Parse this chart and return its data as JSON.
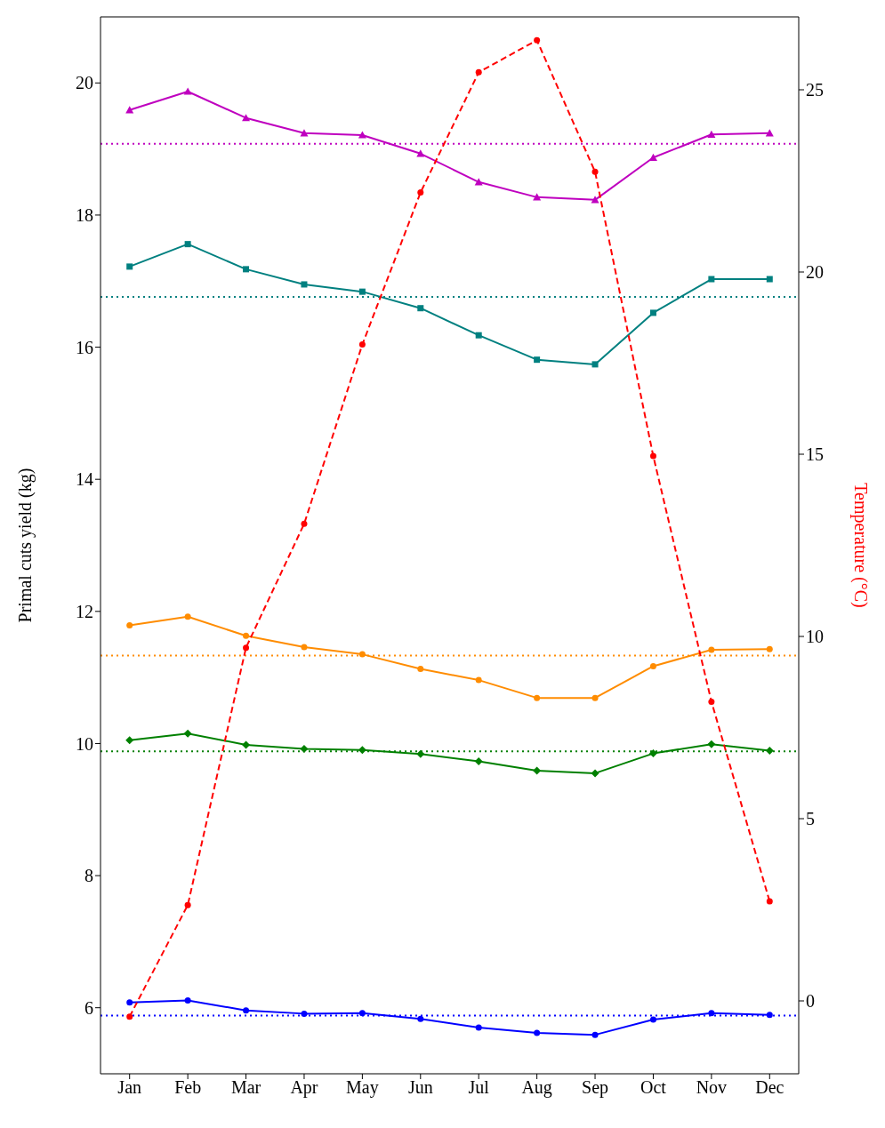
{
  "chart_data": {
    "type": "line",
    "ylabel": "Primal cuts yield (kg)",
    "y2label": "Temperature (°C)",
    "categories": [
      "Jan",
      "Feb",
      "Mar",
      "Apr",
      "May",
      "Jun",
      "Jul",
      "Aug",
      "Sep",
      "Oct",
      "Nov",
      "Dec"
    ],
    "ylim": [
      5,
      21
    ],
    "yticks": [
      6,
      8,
      10,
      12,
      14,
      16,
      18,
      20
    ],
    "y2lim": [
      -2,
      27
    ],
    "y2ticks": [
      0,
      5,
      10,
      15,
      20,
      25
    ],
    "grid": false,
    "legend": false,
    "series": [
      {
        "color": "#bf00bf",
        "marker": "triangle",
        "line_style": "solid",
        "values": [
          19.59,
          19.87,
          19.47,
          19.24,
          19.21,
          18.93,
          18.5,
          18.27,
          18.23,
          18.87,
          19.22,
          19.24
        ]
      },
      {
        "color": "#008080",
        "marker": "square",
        "line_style": "solid",
        "values": [
          17.22,
          17.56,
          17.18,
          16.95,
          16.84,
          16.59,
          16.18,
          15.81,
          15.74,
          16.52,
          17.03,
          17.03
        ]
      },
      {
        "color": "#ff8c00",
        "marker": "circle",
        "line_style": "solid",
        "values": [
          11.79,
          11.92,
          11.63,
          11.46,
          11.35,
          11.13,
          10.96,
          10.69,
          10.69,
          11.17,
          11.42,
          11.43
        ]
      },
      {
        "color": "#008000",
        "marker": "diamond",
        "line_style": "solid",
        "values": [
          10.05,
          10.15,
          9.98,
          9.92,
          9.9,
          9.84,
          9.73,
          9.59,
          9.55,
          9.85,
          9.99,
          9.89
        ]
      },
      {
        "color": "#0000ff",
        "marker": "circle",
        "line_style": "solid",
        "values": [
          6.08,
          6.11,
          5.96,
          5.91,
          5.92,
          5.83,
          5.7,
          5.62,
          5.59,
          5.82,
          5.92,
          5.89
        ]
      },
      {
        "color": "#ff0000",
        "marker": "circle",
        "line_style": "dashed",
        "axis": "y2",
        "values": [
          -0.43,
          2.63,
          9.69,
          13.09,
          18.01,
          22.18,
          25.48,
          26.36,
          22.75,
          14.95,
          8.21,
          2.73
        ]
      }
    ],
    "ref_lines": [
      {
        "axis": "y",
        "value": 19.08,
        "color": "#bf00bf",
        "line_style": "dotted"
      },
      {
        "axis": "y",
        "value": 16.76,
        "color": "#008080",
        "line_style": "dotted"
      },
      {
        "axis": "y",
        "value": 11.33,
        "color": "#ff8c00",
        "line_style": "dotted"
      },
      {
        "axis": "y",
        "value": 9.88,
        "color": "#008000",
        "line_style": "dotted"
      },
      {
        "axis": "y",
        "value": 5.88,
        "color": "#0000ff",
        "line_style": "dotted"
      }
    ]
  }
}
